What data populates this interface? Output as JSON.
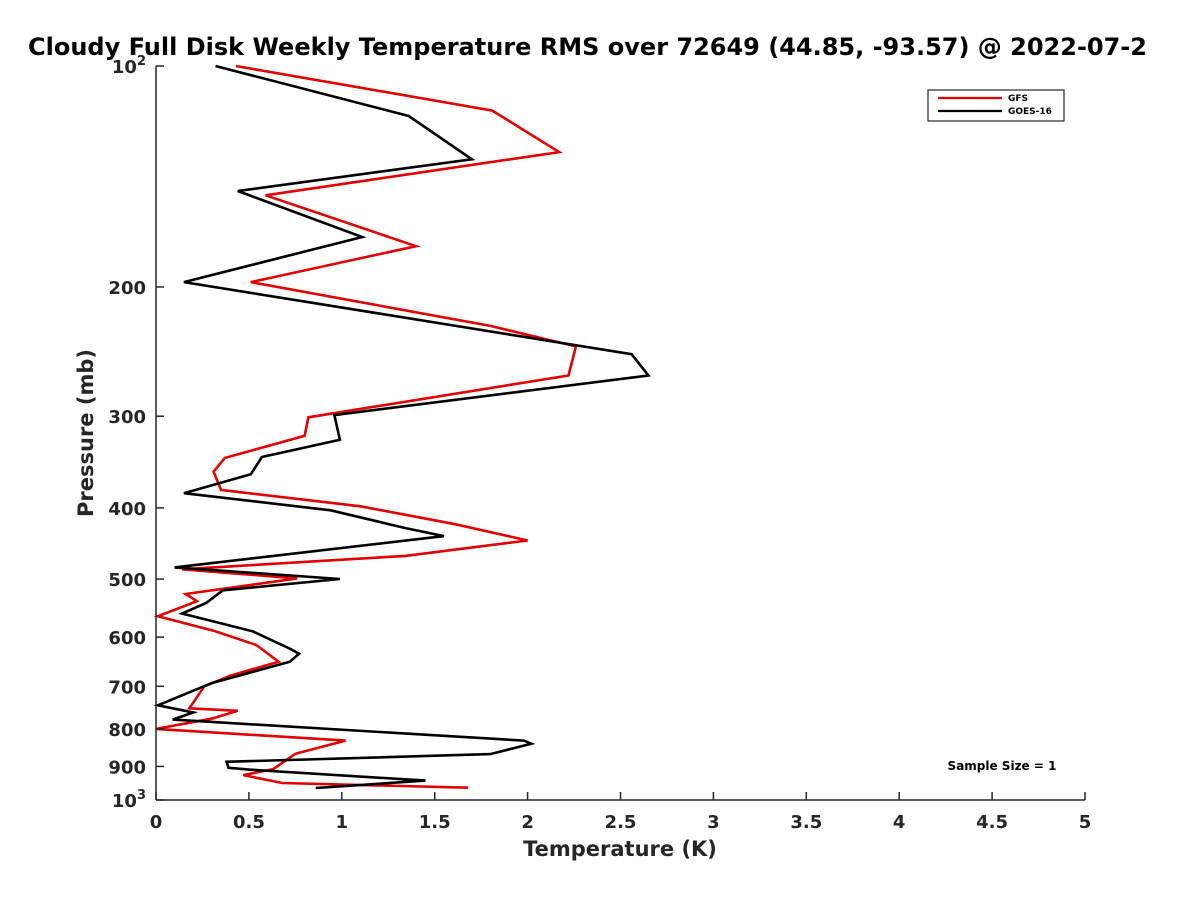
{
  "chart_data": {
    "type": "line",
    "title": "Cloudy Full Disk Weekly Temperature RMS over 72649 (44.85, -93.57) @ 2022-07-2",
    "xlabel": "Temperature (K)",
    "ylabel": "Pressure (mb)",
    "xlim": [
      0,
      5
    ],
    "ylim": [
      100,
      1000
    ],
    "y_scale": "log",
    "y_reversed": true,
    "x_ticks": [
      0,
      0.5,
      1,
      1.5,
      2,
      2.5,
      3,
      3.5,
      4,
      4.5,
      5
    ],
    "x_tick_labels": [
      "0",
      "0.5",
      "1",
      "1.5",
      "2",
      "2.5",
      "3",
      "3.5",
      "4",
      "4.5",
      "5"
    ],
    "y_ticks": [
      100,
      200,
      300,
      400,
      500,
      600,
      700,
      800,
      900,
      1000
    ],
    "y_tick_labels": [
      {
        "base": "10",
        "exp": "2"
      },
      {
        "base": "200",
        "exp": ""
      },
      {
        "base": "300",
        "exp": ""
      },
      {
        "base": "400",
        "exp": ""
      },
      {
        "base": "500",
        "exp": ""
      },
      {
        "base": "600",
        "exp": ""
      },
      {
        "base": "700",
        "exp": ""
      },
      {
        "base": "800",
        "exp": ""
      },
      {
        "base": "900",
        "exp": ""
      },
      {
        "base": "10",
        "exp": "3"
      }
    ],
    "grid": false,
    "legend_position": "top-right",
    "annotation": "Sample Size = 1",
    "series": [
      {
        "name": "GFS",
        "color": "#e00000",
        "points": [
          [
            0.43,
            100
          ],
          [
            1.81,
            115
          ],
          [
            2.17,
            131
          ],
          [
            0.59,
            150
          ],
          [
            1.4,
            176
          ],
          [
            0.51,
            197
          ],
          [
            1.8,
            226
          ],
          [
            2.26,
            241
          ],
          [
            2.22,
            264
          ],
          [
            0.82,
            301
          ],
          [
            0.8,
            319
          ],
          [
            0.37,
            342
          ],
          [
            0.31,
            357
          ],
          [
            0.35,
            378
          ],
          [
            1.1,
            398
          ],
          [
            1.61,
            421
          ],
          [
            2.0,
            443
          ],
          [
            1.34,
            465
          ],
          [
            0.14,
            485
          ],
          [
            0.76,
            499
          ],
          [
            0.16,
            524
          ],
          [
            0.22,
            536
          ],
          [
            0.01,
            562
          ],
          [
            0.31,
            588
          ],
          [
            0.54,
            615
          ],
          [
            0.66,
            648
          ],
          [
            0.4,
            677
          ],
          [
            0.26,
            700
          ],
          [
            0.18,
            750
          ],
          [
            0.44,
            756
          ],
          [
            0.3,
            775
          ],
          [
            0.0,
            800
          ],
          [
            1.02,
            830
          ],
          [
            0.75,
            865
          ],
          [
            0.63,
            908
          ],
          [
            0.47,
            925
          ],
          [
            0.68,
            948
          ],
          [
            1.68,
            962
          ]
        ]
      },
      {
        "name": "GOES-16",
        "color": "#000000",
        "points": [
          [
            0.32,
            100
          ],
          [
            1.36,
            117
          ],
          [
            1.7,
            134
          ],
          [
            0.44,
            148
          ],
          [
            1.11,
            171
          ],
          [
            0.15,
            197
          ],
          [
            2.56,
            247
          ],
          [
            2.65,
            264
          ],
          [
            0.96,
            299
          ],
          [
            0.99,
            323
          ],
          [
            0.57,
            341
          ],
          [
            0.51,
            360
          ],
          [
            0.15,
            382
          ],
          [
            0.94,
            403
          ],
          [
            1.34,
            426
          ],
          [
            1.55,
            437
          ],
          [
            0.1,
            482
          ],
          [
            0.99,
            500
          ],
          [
            0.36,
            518
          ],
          [
            0.27,
            539
          ],
          [
            0.14,
            557
          ],
          [
            0.52,
            589
          ],
          [
            0.72,
            622
          ],
          [
            0.77,
            632
          ],
          [
            0.72,
            648
          ],
          [
            0.3,
            693
          ],
          [
            0.01,
            743
          ],
          [
            0.2,
            760
          ],
          [
            0.09,
            777
          ],
          [
            1.98,
            830
          ],
          [
            2.02,
            838
          ],
          [
            1.8,
            866
          ],
          [
            0.38,
            887
          ],
          [
            0.39,
            904
          ],
          [
            0.5,
            909
          ],
          [
            1.45,
            941
          ],
          [
            0.86,
            963
          ]
        ]
      }
    ]
  }
}
